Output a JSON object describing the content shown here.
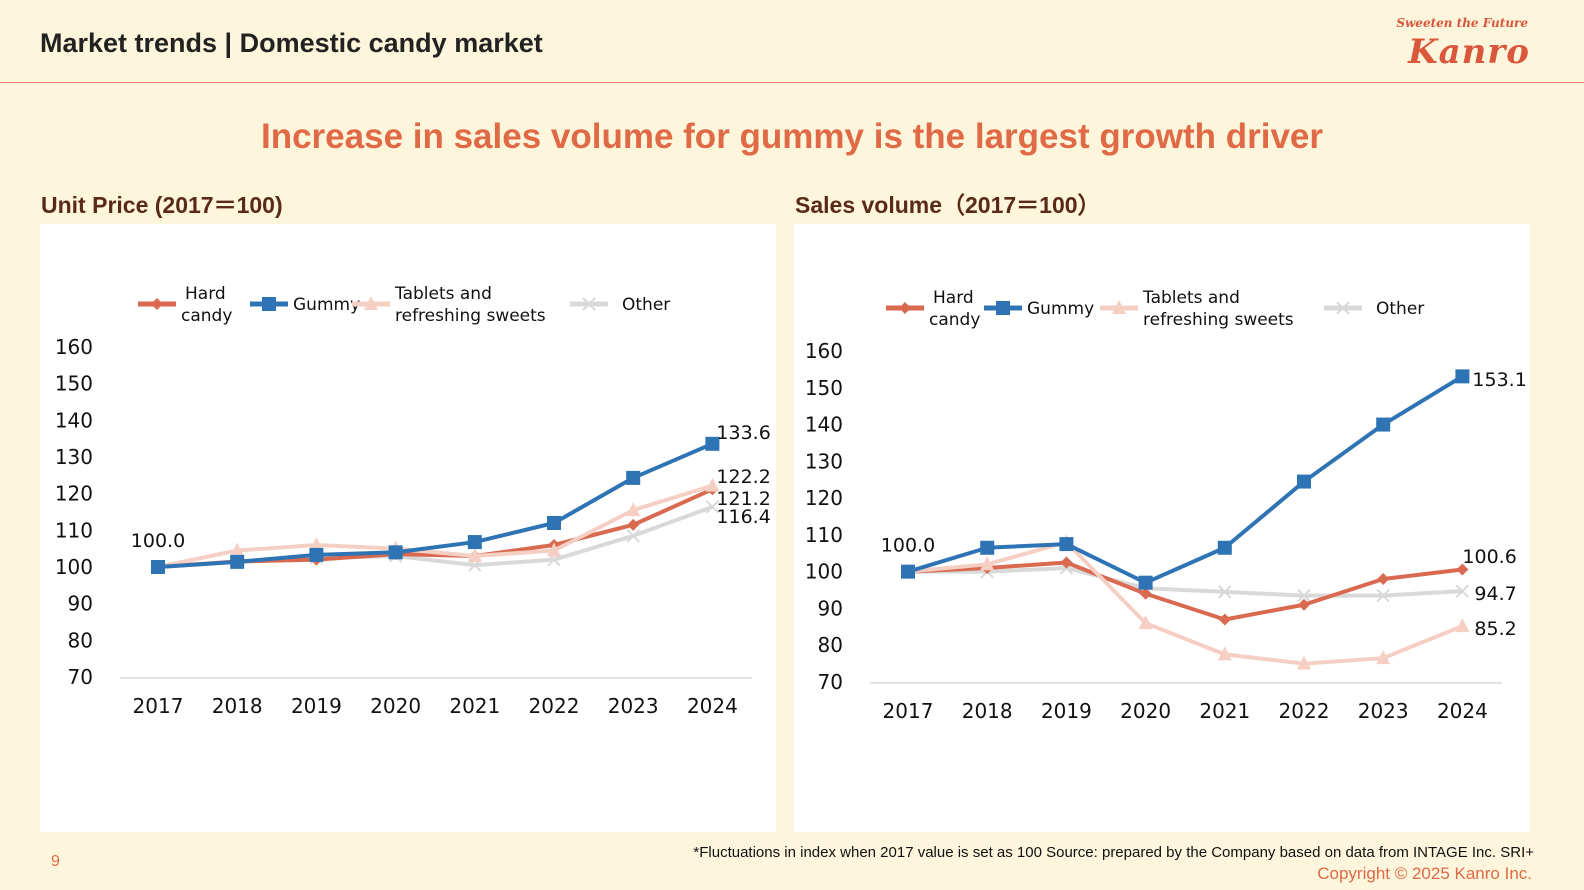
{
  "header": {
    "title": "Market trends | Domestic candy market",
    "logo_tagline": "Sweeten the Future",
    "logo": "Kanro"
  },
  "headline": "Increase in sales volume for gummy is the largest growth driver",
  "footer": {
    "page_number": "9",
    "footnote": "*Fluctuations in index when 2017 value is set as 100  Source: prepared by the Company based on data from INTAGE Inc. SRI+",
    "copyright": "Copyright © 2025  Kanro Inc."
  },
  "colors": {
    "hard_candy": "#d9694f",
    "gummy": "#2e74b5",
    "tablets": "#f6cfc4",
    "other": "#d9d9d9",
    "accent": "#e06a45"
  },
  "chart_data": [
    {
      "type": "line",
      "title": "Unit Price (2017＝100)",
      "xlabel": "",
      "ylabel": "",
      "x": [
        "2017",
        "2018",
        "2019",
        "2020",
        "2021",
        "2022",
        "2023",
        "2024"
      ],
      "ylim": [
        70,
        160
      ],
      "yticks": [
        70,
        80,
        90,
        100,
        110,
        120,
        130,
        140,
        150,
        160
      ],
      "legend": "top",
      "grid": false,
      "series": [
        {
          "name": "Hard candy",
          "key": "hard_candy",
          "marker": "diamond",
          "values": [
            100.0,
            101.5,
            102.0,
            103.5,
            103.0,
            106.0,
            111.5,
            121.2
          ]
        },
        {
          "name": "Gummy",
          "key": "gummy",
          "marker": "square",
          "values": [
            100.0,
            101.4,
            103.3,
            104.0,
            106.8,
            112.0,
            124.3,
            133.6
          ]
        },
        {
          "name": "Tablets and refreshing sweets",
          "key": "tablets",
          "marker": "triangle",
          "values": [
            100.0,
            104.5,
            106.0,
            105.0,
            103.0,
            104.5,
            115.5,
            122.2
          ]
        },
        {
          "name": "Other",
          "key": "other",
          "marker": "x",
          "values": [
            100.0,
            101.5,
            102.5,
            103.0,
            100.5,
            102.0,
            108.5,
            116.4
          ]
        }
      ],
      "annotations": [
        {
          "x": "2017",
          "text": "100.0"
        },
        {
          "x": "2024",
          "series": "Gummy",
          "text": "133.6"
        },
        {
          "x": "2024",
          "series": "Tablets and refreshing sweets",
          "text": "122.2"
        },
        {
          "x": "2024",
          "series": "Hard candy",
          "text": "121.2"
        },
        {
          "x": "2024",
          "series": "Other",
          "text": "116.4"
        }
      ]
    },
    {
      "type": "line",
      "title": "Sales volume（2017＝100）",
      "xlabel": "",
      "ylabel": "",
      "x": [
        "2017",
        "2018",
        "2019",
        "2020",
        "2021",
        "2022",
        "2023",
        "2024"
      ],
      "ylim": [
        70,
        160
      ],
      "yticks": [
        70,
        80,
        90,
        100,
        110,
        120,
        130,
        140,
        150,
        160
      ],
      "legend": "top",
      "grid": false,
      "series": [
        {
          "name": "Hard candy",
          "key": "hard_candy",
          "marker": "diamond",
          "values": [
            100.0,
            101.0,
            102.5,
            94.0,
            87.0,
            91.0,
            98.0,
            100.6
          ]
        },
        {
          "name": "Gummy",
          "key": "gummy",
          "marker": "square",
          "values": [
            100.0,
            106.5,
            107.5,
            97.0,
            106.5,
            124.5,
            140.0,
            153.1
          ]
        },
        {
          "name": "Tablets and refreshing sweets",
          "key": "tablets",
          "marker": "triangle",
          "values": [
            100.0,
            102.0,
            108.0,
            86.0,
            77.5,
            75.0,
            76.5,
            85.2
          ]
        },
        {
          "name": "Other",
          "key": "other",
          "marker": "x",
          "values": [
            100.0,
            100.0,
            101.0,
            95.5,
            94.5,
            93.5,
            93.5,
            94.7
          ]
        }
      ],
      "annotations": [
        {
          "x": "2017",
          "text": "100.0"
        },
        {
          "x": "2024",
          "series": "Gummy",
          "text": "153.1"
        },
        {
          "x": "2024",
          "series": "Hard candy",
          "text": "100.6"
        },
        {
          "x": "2024",
          "series": "Other",
          "text": "94.7"
        },
        {
          "x": "2024",
          "series": "Tablets and refreshing sweets",
          "text": "85.2"
        }
      ]
    }
  ],
  "legend_labels": {
    "hard_candy": [
      "Hard",
      "candy"
    ],
    "gummy": [
      "Gummy"
    ],
    "tablets": [
      "Tablets and",
      "refreshing sweets"
    ],
    "other": [
      "Other"
    ]
  }
}
